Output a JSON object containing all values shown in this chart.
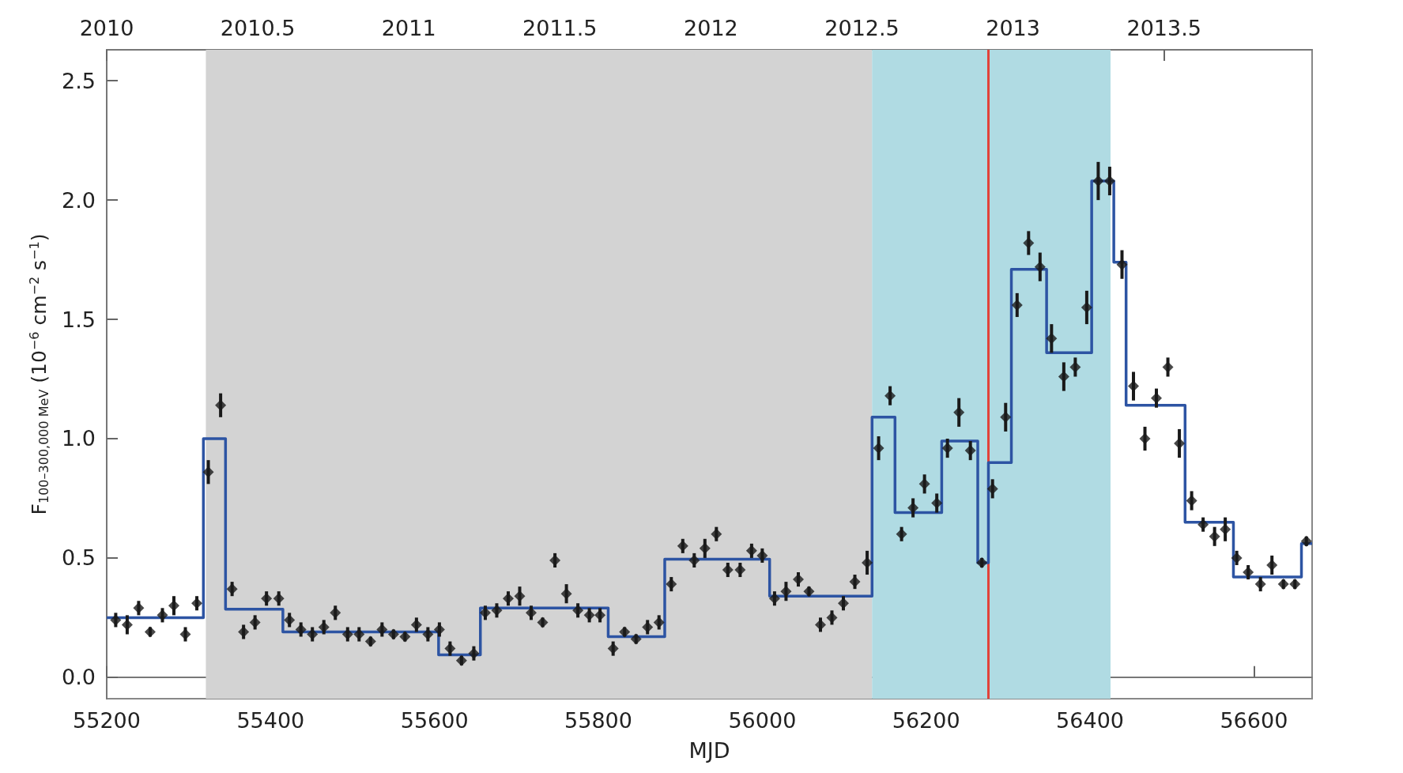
{
  "chart_data": {
    "type": "scatter",
    "xlabel": "MJD",
    "ylabel": "F$_{100–300,000 MeV}$ (10$^{−6}$ cm$^{−2}$ s$^{−1}$)",
    "xlim": [
      55200,
      56671
    ],
    "xticks": [
      55200,
      55400,
      55600,
      55800,
      56000,
      56200,
      56400,
      56600
    ],
    "x2lim": [
      2010.0,
      2013.99
    ],
    "x2ticks": [
      2010,
      2010.5,
      2011,
      2011.5,
      2012,
      2012.5,
      2013,
      2013.5
    ],
    "ylim": [
      -0.09,
      2.63
    ],
    "yticks": [
      {
        "value": 0,
        "label": "0.0"
      },
      0.5,
      {
        "value": 1,
        "label": "1.0"
      },
      1.5,
      {
        "value": 2,
        "label": "2.0"
      },
      2.5
    ],
    "bands": [
      {
        "axis": "x",
        "from": 55321,
        "to": 56134,
        "label": null,
        "color": "#d3d3d3"
      },
      {
        "axis": "x",
        "from": 56134,
        "to": 56425,
        "label": null,
        "color": "#b0dbe3"
      }
    ],
    "ref_lines": [
      {
        "axis": "x",
        "value": 56276,
        "label": null,
        "color": "#e2423a",
        "line_style": "solid"
      }
    ],
    "series": [
      {
        "marker": "diamond",
        "color": "#1a1a1a",
        "x": [
          55211,
          55225,
          55239,
          55253,
          55268,
          55282,
          55296,
          55310,
          55324,
          55339,
          55353,
          55367,
          55381,
          55395,
          55410,
          55423,
          55437,
          55451,
          55465,
          55479,
          55494,
          55508,
          55522,
          55536,
          55550,
          55564,
          55578,
          55592,
          55606,
          55619,
          55633,
          55648,
          55662,
          55676,
          55690,
          55704,
          55718,
          55732,
          55747,
          55761,
          55775,
          55789,
          55802,
          55818,
          55832,
          55846,
          55860,
          55874,
          55889,
          55903,
          55917,
          55930,
          55944,
          55958,
          55973,
          55987,
          56000,
          56015,
          56029,
          56044,
          56057,
          56071,
          56085,
          56099,
          56113,
          56128,
          56142,
          56156,
          56170,
          56184,
          56198,
          56213,
          56226,
          56240,
          56254,
          56268,
          56281,
          56297,
          56311,
          56325,
          56339,
          56353,
          56368,
          56382,
          56396,
          56410,
          56424,
          56439,
          56453,
          56467,
          56481,
          56495,
          56509,
          56524,
          56538,
          56552,
          56565,
          56579,
          56593,
          56608,
          56622,
          56636,
          56650,
          56664
        ],
        "values": [
          0.24,
          0.22,
          0.29,
          0.19,
          0.26,
          0.3,
          0.18,
          0.31,
          0.86,
          1.14,
          0.37,
          0.19,
          0.23,
          0.33,
          0.33,
          0.24,
          0.2,
          0.18,
          0.21,
          0.27,
          0.18,
          0.18,
          0.15,
          0.2,
          0.18,
          0.17,
          0.22,
          0.18,
          0.2,
          0.12,
          0.07,
          0.1,
          0.27,
          0.28,
          0.33,
          0.34,
          0.27,
          0.23,
          0.49,
          0.35,
          0.28,
          0.26,
          0.26,
          0.12,
          0.19,
          0.16,
          0.21,
          0.23,
          0.39,
          0.55,
          0.49,
          0.54,
          0.6,
          0.45,
          0.45,
          0.53,
          0.51,
          0.33,
          0.36,
          0.41,
          0.36,
          0.22,
          0.25,
          0.31,
          0.4,
          0.48,
          0.96,
          1.18,
          0.6,
          0.71,
          0.81,
          0.73,
          0.96,
          1.11,
          0.95,
          0.48,
          0.79,
          1.09,
          1.56,
          1.82,
          1.72,
          1.42,
          1.26,
          1.3,
          1.55,
          2.08,
          2.08,
          1.73,
          1.22,
          1.0,
          1.17,
          1.3,
          0.98,
          0.74,
          0.64,
          0.59,
          0.62,
          0.5,
          0.44,
          0.39,
          0.47,
          0.39,
          0.39,
          0.57
        ],
        "errors": [
          0.03,
          0.04,
          0.03,
          0.02,
          0.03,
          0.04,
          0.03,
          0.03,
          0.05,
          0.05,
          0.03,
          0.03,
          0.03,
          0.03,
          0.03,
          0.03,
          0.03,
          0.03,
          0.03,
          0.03,
          0.03,
          0.03,
          0.02,
          0.03,
          0.02,
          0.02,
          0.03,
          0.03,
          0.03,
          0.03,
          0.02,
          0.03,
          0.03,
          0.03,
          0.03,
          0.04,
          0.03,
          0.02,
          0.03,
          0.04,
          0.03,
          0.03,
          0.03,
          0.03,
          0.02,
          0.02,
          0.03,
          0.03,
          0.03,
          0.03,
          0.03,
          0.04,
          0.03,
          0.03,
          0.03,
          0.03,
          0.03,
          0.03,
          0.04,
          0.03,
          0.02,
          0.03,
          0.03,
          0.03,
          0.03,
          0.05,
          0.05,
          0.04,
          0.03,
          0.04,
          0.04,
          0.04,
          0.04,
          0.06,
          0.04,
          0.02,
          0.04,
          0.06,
          0.05,
          0.05,
          0.06,
          0.06,
          0.06,
          0.04,
          0.07,
          0.08,
          0.06,
          0.06,
          0.06,
          0.05,
          0.04,
          0.04,
          0.06,
          0.04,
          0.03,
          0.04,
          0.05,
          0.03,
          0.03,
          0.03,
          0.04,
          0.02,
          0.02,
          0.02
        ]
      },
      {
        "type": "step",
        "color": "#2d54a3",
        "x": [
          55200,
          55318,
          55345,
          55415,
          55605,
          55656,
          55812,
          55881,
          56009,
          56134,
          56162,
          56219,
          56263,
          56276,
          56304,
          56347,
          56402,
          56429,
          56444,
          56516,
          56575,
          56658,
          56671
        ],
        "values": [
          0.25,
          1.0,
          0.285,
          0.19,
          0.094,
          0.29,
          0.17,
          0.495,
          0.34,
          1.09,
          0.69,
          0.99,
          0.48,
          0.9,
          1.71,
          1.36,
          2.08,
          1.74,
          1.14,
          0.65,
          0.42,
          0.56,
          0.56
        ]
      }
    ]
  }
}
